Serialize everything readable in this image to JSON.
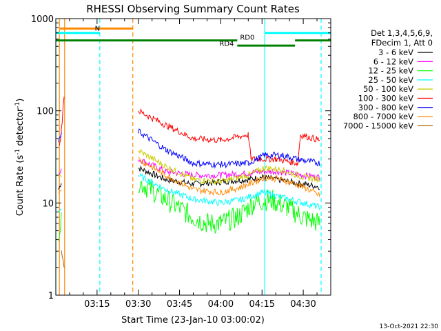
{
  "chart_data": {
    "type": "line",
    "title": "RHESSI Observing Summary Count Rates",
    "xlabel": "Start Time (23-Jan-10 03:00:02)",
    "ylabel_main": "Count Rate (s",
    "ylabel_sup1": "-1",
    "ylabel_mid": " detector",
    "ylabel_sup2": "-1",
    "ylabel_end": ")",
    "yscale": "log",
    "ylim": [
      1,
      1000
    ],
    "xlim_minutes": [
      0,
      100
    ],
    "y_ticks": [
      {
        "value": 1,
        "label": "1"
      },
      {
        "value": 10,
        "label": "10"
      },
      {
        "value": 100,
        "label": "100"
      },
      {
        "value": 1000,
        "label": "1000"
      }
    ],
    "x_ticks": [
      {
        "minute": 15,
        "label": "03:15"
      },
      {
        "minute": 30,
        "label": "03:30"
      },
      {
        "minute": 45,
        "label": "03:45"
      },
      {
        "minute": 60,
        "label": "04:00"
      },
      {
        "minute": 75,
        "label": "04:15"
      },
      {
        "minute": 90,
        "label": "04:30"
      }
    ],
    "legend_header": [
      "Det 1,3,4,5,6,9,",
      "FDecim 1, Att 0"
    ],
    "series": [
      {
        "name": "3 - 6 keV",
        "color": "#000000",
        "points": [
          [
            1,
            14
          ],
          [
            2,
            17
          ],
          [
            15,
            null
          ],
          [
            30,
            24
          ],
          [
            40,
            18
          ],
          [
            50,
            16
          ],
          [
            60,
            17
          ],
          [
            70,
            18
          ],
          [
            75,
            19
          ],
          [
            80,
            18
          ],
          [
            90,
            16
          ],
          [
            96,
            15
          ]
        ]
      },
      {
        "name": "6 - 12 keV",
        "color": "#ff00ff",
        "points": [
          [
            1,
            20
          ],
          [
            2,
            22
          ],
          [
            15,
            null
          ],
          [
            30,
            30
          ],
          [
            40,
            22
          ],
          [
            50,
            20
          ],
          [
            60,
            20
          ],
          [
            70,
            21
          ],
          [
            75,
            22
          ],
          [
            80,
            22
          ],
          [
            90,
            20
          ],
          [
            96,
            19
          ]
        ]
      },
      {
        "name": "12 - 25 keV",
        "color": "#00ff00",
        "points": [
          [
            1,
            5
          ],
          [
            2,
            6
          ],
          [
            15,
            null
          ],
          [
            30,
            17
          ],
          [
            40,
            11
          ],
          [
            50,
            7
          ],
          [
            55,
            6
          ],
          [
            60,
            6
          ],
          [
            66,
            7
          ],
          [
            72,
            10
          ],
          [
            78,
            11
          ],
          [
            84,
            9
          ],
          [
            90,
            7
          ],
          [
            96,
            6
          ]
        ]
      },
      {
        "name": "25 - 50 keV",
        "color": "#00ffff",
        "points": [
          [
            1,
            8
          ],
          [
            2,
            9
          ],
          [
            15,
            null
          ],
          [
            30,
            20
          ],
          [
            40,
            14
          ],
          [
            50,
            11
          ],
          [
            60,
            10
          ],
          [
            68,
            11
          ],
          [
            75,
            13
          ],
          [
            80,
            12
          ],
          [
            90,
            10
          ],
          [
            96,
            9
          ]
        ]
      },
      {
        "name": "50 - 100 keV",
        "color": "#cccc00",
        "points": [
          [
            1,
            18
          ],
          [
            2,
            20
          ],
          [
            15,
            null
          ],
          [
            30,
            37
          ],
          [
            40,
            25
          ],
          [
            50,
            18
          ],
          [
            60,
            17
          ],
          [
            70,
            20
          ],
          [
            76,
            24
          ],
          [
            82,
            23
          ],
          [
            90,
            19
          ],
          [
            96,
            18
          ]
        ]
      },
      {
        "name": "100 - 300 keV",
        "color": "#ff0000",
        "points": [
          [
            1,
            40
          ],
          [
            2,
            60
          ],
          [
            3,
            150
          ],
          [
            15,
            null
          ],
          [
            30,
            100
          ],
          [
            40,
            70
          ],
          [
            50,
            50
          ],
          [
            60,
            48
          ],
          [
            70,
            55
          ],
          [
            71,
            30
          ],
          [
            80,
            30
          ],
          [
            88,
            27
          ],
          [
            89,
            55
          ],
          [
            96,
            48
          ]
        ]
      },
      {
        "name": "300 - 800 keV",
        "color": "#0000ff",
        "points": [
          [
            1,
            45
          ],
          [
            2,
            55
          ],
          [
            15,
            null
          ],
          [
            30,
            60
          ],
          [
            40,
            38
          ],
          [
            50,
            27
          ],
          [
            60,
            26
          ],
          [
            70,
            27
          ],
          [
            76,
            33
          ],
          [
            82,
            33
          ],
          [
            90,
            29
          ],
          [
            96,
            27
          ]
        ]
      },
      {
        "name": "800 - 7000 keV",
        "color": "#ff8800",
        "points": [
          [
            1,
            13
          ],
          [
            2,
            15
          ],
          [
            15,
            null
          ],
          [
            30,
            30
          ],
          [
            40,
            20
          ],
          [
            50,
            14
          ],
          [
            60,
            13
          ],
          [
            68,
            15
          ],
          [
            76,
            19
          ],
          [
            82,
            18
          ],
          [
            90,
            15
          ],
          [
            96,
            12
          ]
        ]
      },
      {
        "name": "7000 - 15000 keV",
        "color": "#aa6600",
        "points": [
          [
            2,
            3
          ],
          [
            3,
            2
          ],
          [
            15,
            null
          ]
        ]
      }
    ],
    "annotations": {
      "n_label": "N",
      "rd0_label": "RD0",
      "rd4_label": "RD4"
    },
    "state_bars": [
      {
        "label_key": "orange_top",
        "color": "#ff8800",
        "from": 1.5,
        "to": 28,
        "y": 780
      },
      {
        "label_key": "cyan_n",
        "color": "#00ffff",
        "from": 0,
        "to": 16,
        "y": 700
      },
      {
        "label_key": "cyan_rd0",
        "color": "#00ffff",
        "from": 76,
        "to": 100,
        "y": 700
      },
      {
        "label_key": "green_top",
        "color": "#008000",
        "from": 0,
        "to": 66,
        "y": 580
      },
      {
        "label_key": "green_top2",
        "color": "#008000",
        "from": 87,
        "to": 100,
        "y": 580
      },
      {
        "label_key": "green_rd4",
        "color": "#008000",
        "from": 66,
        "to": 87,
        "y": 510
      }
    ],
    "vlines": [
      {
        "minute": 0,
        "color": "#00ffff",
        "style": "solid"
      },
      {
        "minute": 1.3,
        "color": "#ff8800",
        "style": "solid"
      },
      {
        "minute": 3.2,
        "color": "#ff8800",
        "style": "solid"
      },
      {
        "minute": 16,
        "color": "#00ffff",
        "style": "dashed"
      },
      {
        "minute": 28,
        "color": "#ff8800",
        "style": "dashed"
      },
      {
        "minute": 76,
        "color": "#00ffff",
        "style": "solid"
      },
      {
        "minute": 96.5,
        "color": "#00ffff",
        "style": "dashed"
      }
    ],
    "footer_date": "13-Oct-2021 22:30"
  }
}
